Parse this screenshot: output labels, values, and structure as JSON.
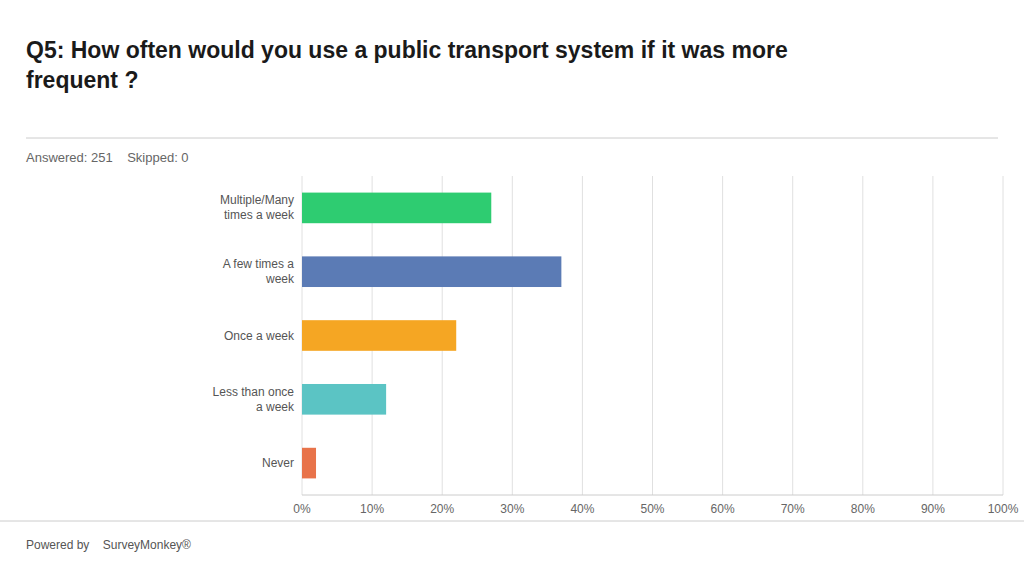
{
  "chart_data": {
    "type": "bar",
    "orientation": "horizontal",
    "title": "Q5: How often would you use a public transport system if it was more\nfrequent ?",
    "subtitle": "Answered: 251    Skipped: 0",
    "annotations": [
      "Powered by    SurveyMonkey®"
    ],
    "categories": [
      "Multiple/Many\ntimes a week",
      "A few times a\nweek",
      "Once a week",
      "Less than once\na week",
      "Never"
    ],
    "values": [
      27,
      37,
      22,
      12,
      2
    ],
    "colors": [
      "#2ecc71",
      "#5b7bb5",
      "#f5a623",
      "#5bc4c4",
      "#e8734a"
    ],
    "xlim": [
      0,
      100
    ],
    "xticks": [
      {
        "value": 0,
        "label": "0%"
      },
      {
        "value": 10,
        "label": "10%"
      },
      {
        "value": 20,
        "label": "20%"
      },
      {
        "value": 30,
        "label": "30%"
      },
      {
        "value": 40,
        "label": "40%"
      },
      {
        "value": 50,
        "label": "50%"
      },
      {
        "value": 60,
        "label": "60%"
      },
      {
        "value": 70,
        "label": "70%"
      },
      {
        "value": 80,
        "label": "80%"
      },
      {
        "value": 90,
        "label": "90%"
      },
      {
        "value": 100,
        "label": "100%"
      }
    ],
    "grid": true
  }
}
